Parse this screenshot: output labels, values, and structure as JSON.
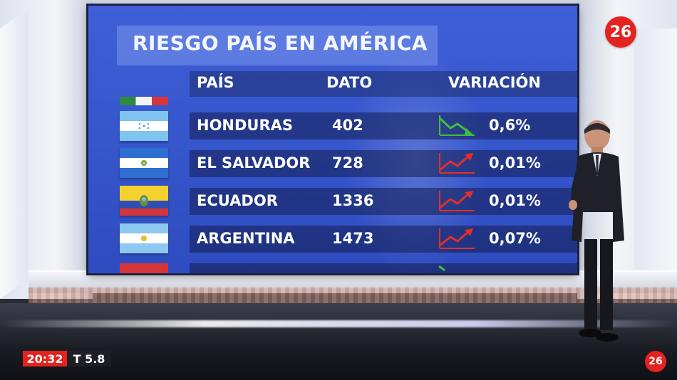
{
  "channel": {
    "logo_text": "26"
  },
  "board": {
    "title": "RIESGO PAÍS EN AMÉRICA",
    "headers": {
      "country": "PAÍS",
      "value": "DATO",
      "change": "VARIACIÓN"
    },
    "rows": [
      {
        "country": "HONDURAS",
        "value": "402",
        "change": "0,6%",
        "trend": "down",
        "trend_color": "#3fbf3f"
      },
      {
        "country": "EL SALVADOR",
        "value": "728",
        "change": "0,01%",
        "trend": "up",
        "trend_color": "#e0302a"
      },
      {
        "country": "ECUADOR",
        "value": "1336",
        "change": "0,01%",
        "trend": "up",
        "trend_color": "#e0302a"
      },
      {
        "country": "ARGENTINA",
        "value": "1473",
        "change": "0,07%",
        "trend": "up",
        "trend_color": "#e0302a"
      }
    ]
  },
  "ticker": {
    "time": "20:32",
    "temperature": "T 5.8"
  },
  "colors": {
    "screen_blue": "#3656cc",
    "brand_red": "#e4221e",
    "up_red": "#e0302a",
    "down_green": "#3fbf3f"
  }
}
